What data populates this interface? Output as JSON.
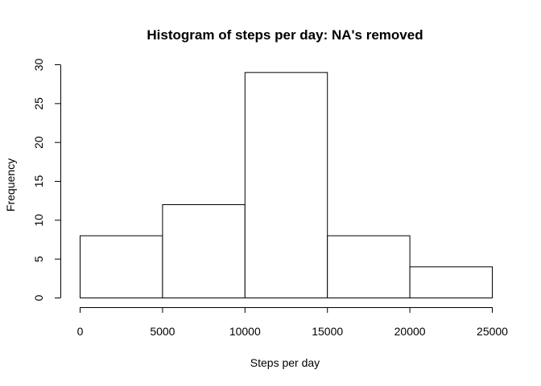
{
  "chart_data": {
    "type": "bar",
    "title": "Histogram of steps per day: NA's removed",
    "xlabel": "Steps per day",
    "ylabel": "Frequency",
    "bins": [
      {
        "from": 0,
        "to": 5000,
        "value": 8
      },
      {
        "from": 5000,
        "to": 10000,
        "value": 12
      },
      {
        "from": 10000,
        "to": 15000,
        "value": 29
      },
      {
        "from": 15000,
        "to": 20000,
        "value": 8
      },
      {
        "from": 20000,
        "to": 25000,
        "value": 4
      }
    ],
    "xlim": [
      0,
      25000
    ],
    "ylim": [
      0,
      30
    ],
    "x_ticks": [
      0,
      5000,
      10000,
      15000,
      20000,
      25000
    ],
    "x_tick_labels": [
      "0",
      "5000",
      "10000",
      "15000",
      "20000",
      "25000"
    ],
    "y_ticks": [
      0,
      5,
      10,
      15,
      20,
      25,
      30
    ],
    "y_tick_labels": [
      "0",
      "5",
      "10",
      "15",
      "20",
      "25",
      "30"
    ],
    "grid": false,
    "legend": "none",
    "colors": {
      "bar_fill": "#ffffff",
      "bar_stroke": "#000000"
    }
  }
}
